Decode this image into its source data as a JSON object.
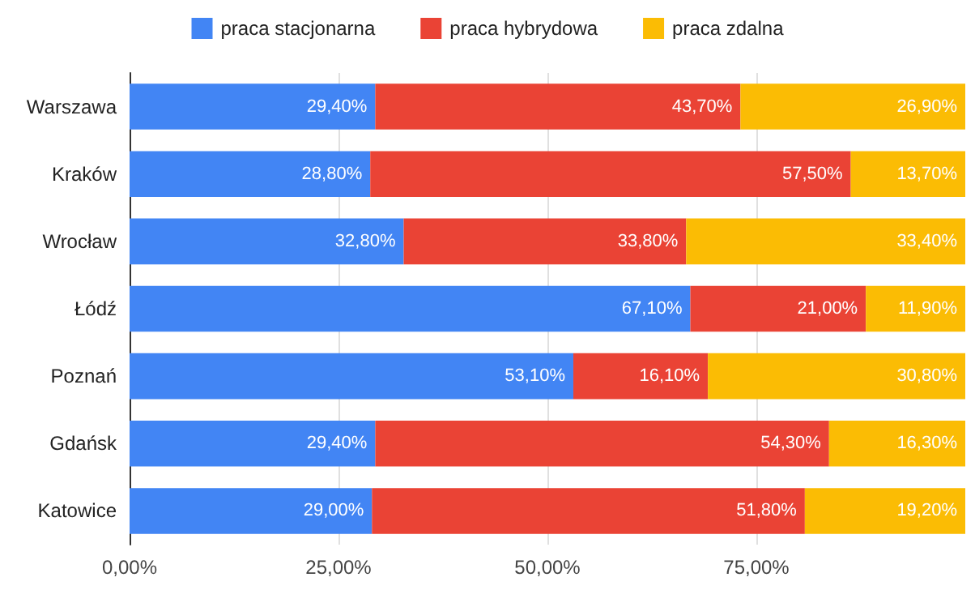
{
  "chart_data": {
    "type": "bar",
    "orientation": "horizontal",
    "stacked": true,
    "categories": [
      "Warszawa",
      "Kraków",
      "Wrocław",
      "Łódź",
      "Poznań",
      "Gdańsk",
      "Katowice"
    ],
    "series": [
      {
        "name": "praca stacjonarna",
        "color": "#4285f4",
        "values": [
          29.4,
          28.8,
          32.8,
          67.1,
          53.1,
          29.4,
          29.0
        ],
        "value_labels": [
          "29,40%",
          "28,80%",
          "32,80%",
          "67,10%",
          "53,10%",
          "29,40%",
          "29,00%"
        ]
      },
      {
        "name": "praca hybrydowa",
        "color": "#ea4335",
        "values": [
          43.7,
          57.5,
          33.8,
          21.0,
          16.1,
          54.3,
          51.8
        ],
        "value_labels": [
          "43,70%",
          "57,50%",
          "33,80%",
          "21,00%",
          "16,10%",
          "54,30%",
          "51,80%"
        ]
      },
      {
        "name": "praca zdalna",
        "color": "#fbbc04",
        "values": [
          26.9,
          13.7,
          33.4,
          11.9,
          30.8,
          16.3,
          19.2
        ],
        "value_labels": [
          "26,90%",
          "13,70%",
          "33,40%",
          "11,90%",
          "30,80%",
          "16,30%",
          "19,20%"
        ]
      }
    ],
    "xlim": [
      0,
      100
    ],
    "xticks": [
      {
        "value": 0,
        "label": "0,00%"
      },
      {
        "value": 25,
        "label": "25,00%"
      },
      {
        "value": 50,
        "label": "50,00%"
      },
      {
        "value": 75,
        "label": "75,00%"
      }
    ],
    "grid": "x",
    "legend": "top"
  }
}
